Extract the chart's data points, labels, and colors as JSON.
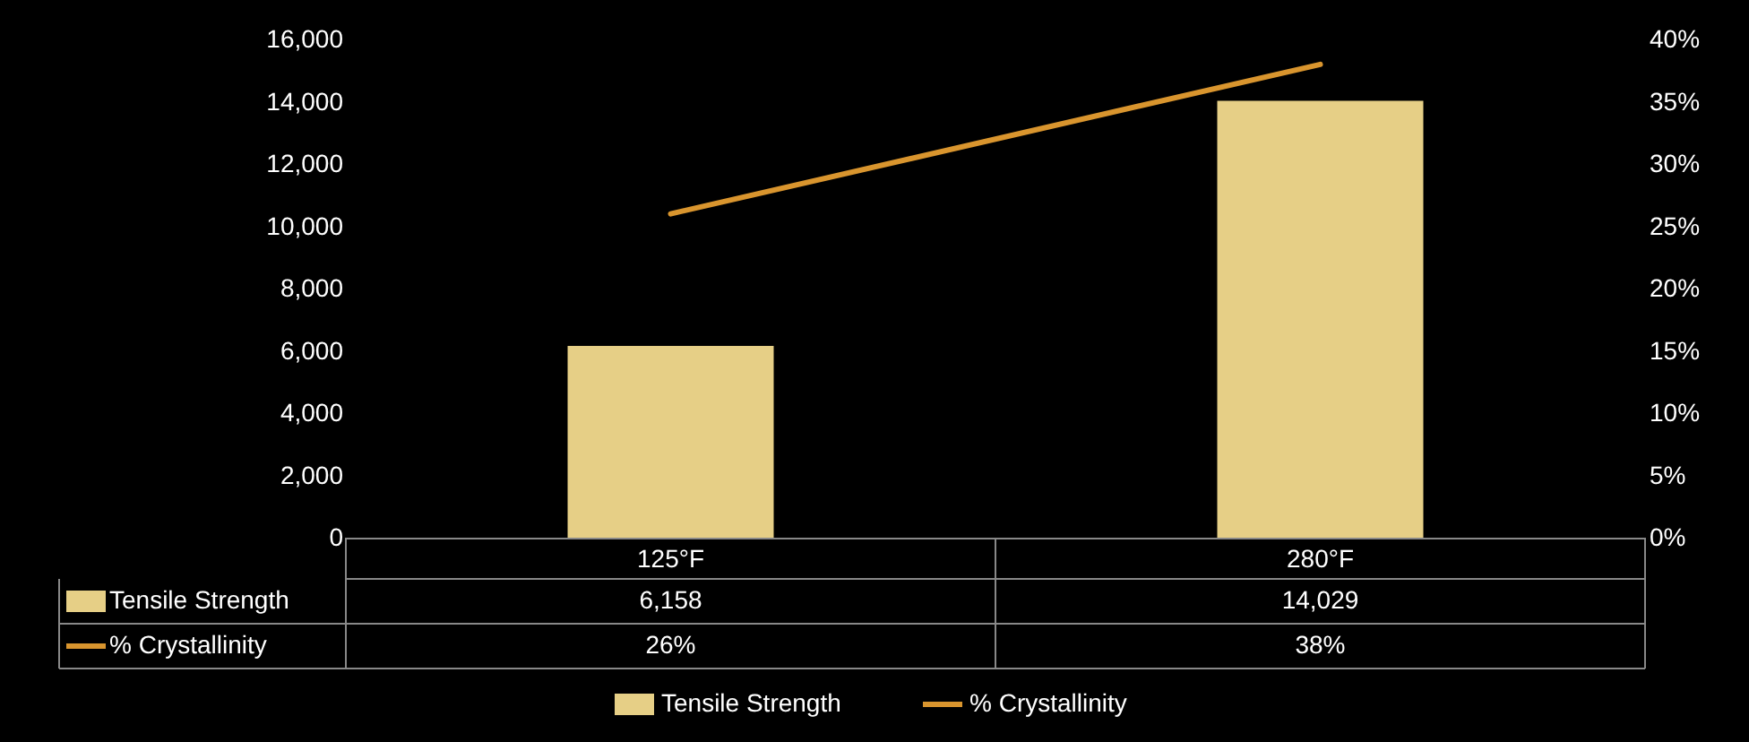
{
  "chart_data": {
    "type": "bar",
    "categories": [
      "125°F",
      "280°F"
    ],
    "series": [
      {
        "name": "Tensile Strength",
        "color": "#e6cf86",
        "values": [
          6158,
          14029
        ],
        "value_labels": [
          "6,158",
          "14,029"
        ]
      },
      {
        "name": "% Crystallinity",
        "type": "line",
        "axis": "y2",
        "color": "#d9952e",
        "values": [
          26,
          38
        ],
        "value_labels": [
          "26%",
          "38%"
        ]
      }
    ],
    "ylim": [
      0,
      16000
    ],
    "yticks": [
      0,
      {
        "value": 2000,
        "label": "2,000"
      },
      {
        "value": 4000,
        "label": "4,000"
      },
      {
        "value": 6000,
        "label": "6,000"
      },
      {
        "value": 8000,
        "label": "8,000"
      },
      {
        "value": 10000,
        "label": "10,000"
      },
      {
        "value": 12000,
        "label": "12,000"
      },
      {
        "value": 14000,
        "label": "14,000"
      },
      {
        "value": 16000,
        "label": "16,000"
      }
    ],
    "y2lim": [
      0,
      40
    ],
    "y2ticks": [
      {
        "value": 0,
        "label": "0%"
      },
      {
        "value": 5,
        "label": "5%"
      },
      {
        "value": 10,
        "label": "10%"
      },
      {
        "value": 15,
        "label": "15%"
      },
      {
        "value": 20,
        "label": "20%"
      },
      {
        "value": 25,
        "label": "25%"
      },
      {
        "value": 30,
        "label": "30%"
      },
      {
        "value": 35,
        "label": "35%"
      },
      {
        "value": 40,
        "label": "40%"
      }
    ],
    "grid": false,
    "legend": "bottom",
    "data_labels": true
  }
}
